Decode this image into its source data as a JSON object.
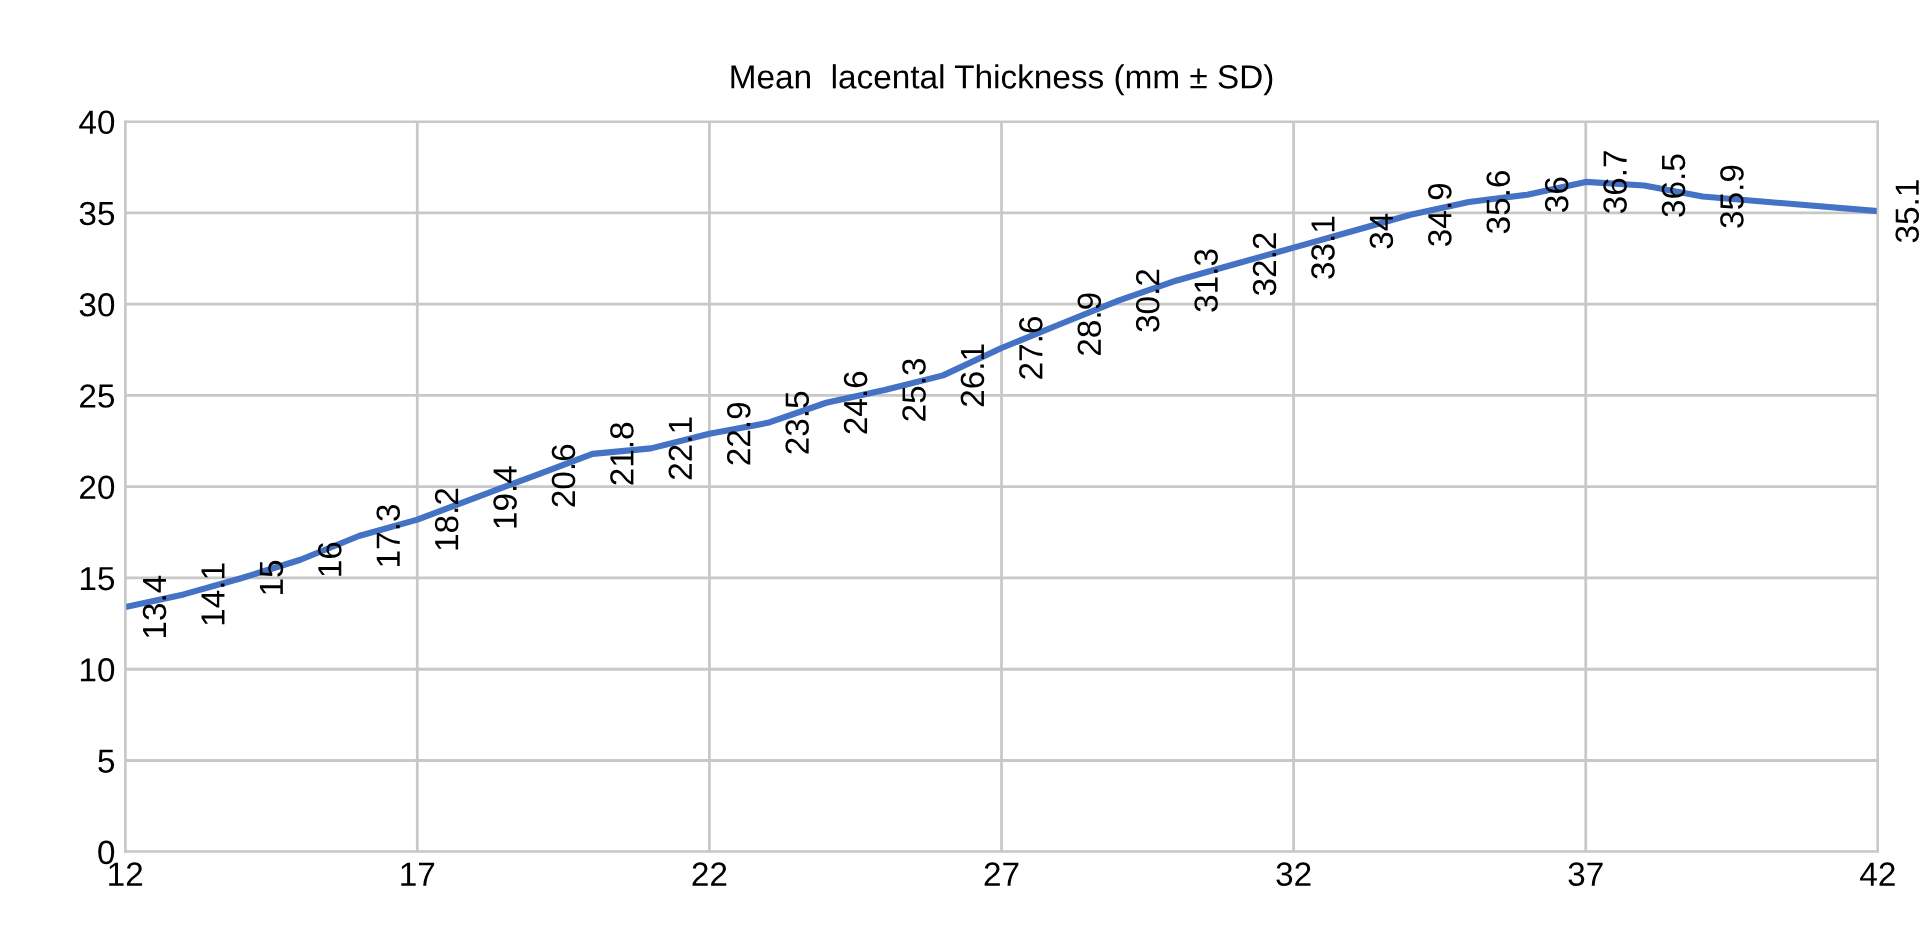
{
  "chart_data": {
    "type": "line",
    "title": "Mean  lacental Thickness (mm ± SD)",
    "x": [
      12,
      13,
      14,
      15,
      16,
      17,
      18,
      19,
      20,
      21,
      22,
      23,
      24,
      25,
      26,
      27,
      28,
      29,
      30,
      31,
      32,
      33,
      34,
      35,
      36,
      37,
      38,
      39,
      42
    ],
    "series": [
      {
        "color": "#4472c4",
        "values": [
          13.4,
          14.1,
          15,
          16,
          17.3,
          18.2,
          19.4,
          20.6,
          21.8,
          22.1,
          22.9,
          23.5,
          24.6,
          25.3,
          26.1,
          27.6,
          28.9,
          30.2,
          31.3,
          32.2,
          33.1,
          34,
          34.9,
          35.6,
          36,
          36.7,
          36.5,
          35.9,
          35.1
        ]
      }
    ],
    "data_labels": true,
    "xlim": [
      12,
      42
    ],
    "xticks": [
      12,
      17,
      22,
      27,
      32,
      37,
      42
    ],
    "ylim": [
      0,
      40
    ],
    "yticks": [
      0,
      5,
      10,
      15,
      20,
      25,
      30,
      35,
      40
    ],
    "grid": true,
    "marker": "none",
    "line_style": "solid"
  }
}
